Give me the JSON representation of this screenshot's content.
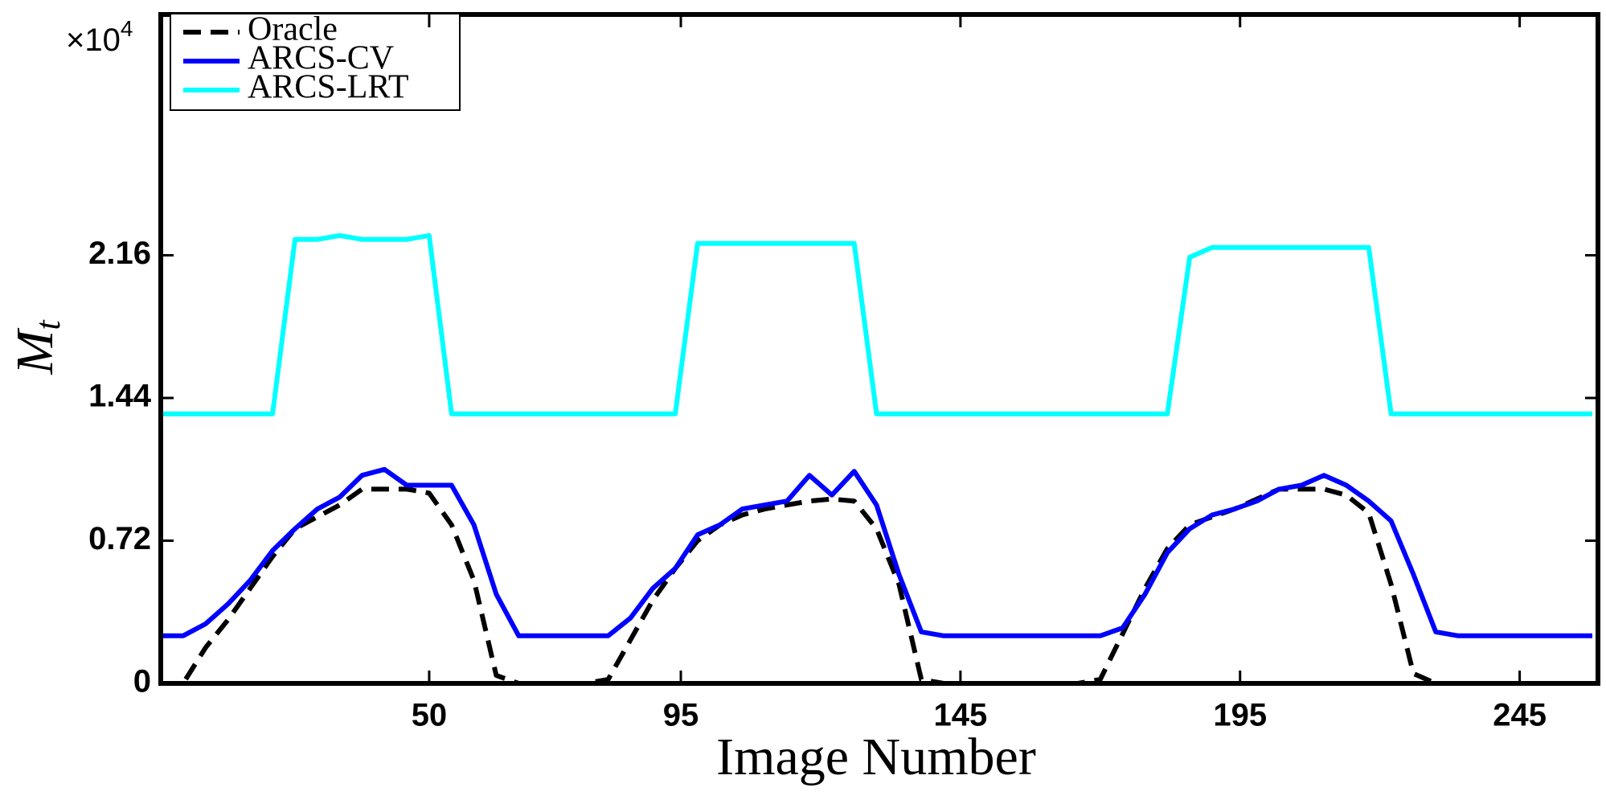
{
  "chart_data": {
    "type": "line",
    "xlabel": "Image Number",
    "ylabel": "M",
    "ylabel_subscript": "t",
    "y_offset_text": "×10",
    "y_offset_exponent": "4",
    "x": [
      2,
      6,
      10,
      14,
      18,
      22,
      26,
      30,
      34,
      38,
      42,
      46,
      50,
      54,
      58,
      62,
      66,
      70,
      74,
      78,
      82,
      86,
      90,
      94,
      98,
      102,
      106,
      110,
      114,
      118,
      122,
      126,
      130,
      134,
      138,
      142,
      146,
      150,
      154,
      158,
      162,
      166,
      170,
      174,
      178,
      182,
      186,
      190,
      194,
      198,
      202,
      206,
      210,
      214,
      218,
      222,
      226,
      230,
      234,
      238,
      242,
      246,
      250,
      254,
      258
    ],
    "series": [
      {
        "name": "Oracle",
        "color": "#000000",
        "dashed": true,
        "values": [
          0,
          0,
          0.18,
          0.32,
          0.48,
          0.64,
          0.78,
          0.84,
          0.9,
          0.98,
          0.98,
          0.98,
          0.96,
          0.8,
          0.52,
          0.04,
          0,
          0,
          0,
          0,
          0.02,
          0.22,
          0.42,
          0.58,
          0.72,
          0.8,
          0.85,
          0.88,
          0.9,
          0.92,
          0.93,
          0.92,
          0.78,
          0.5,
          0.02,
          0,
          0,
          0,
          0,
          0,
          0,
          0,
          0.02,
          0.25,
          0.48,
          0.68,
          0.8,
          0.84,
          0.88,
          0.93,
          0.98,
          0.98,
          0.98,
          0.95,
          0.86,
          0.5,
          0.05,
          0,
          0,
          0,
          0,
          0,
          0,
          0,
          0
        ]
      },
      {
        "name": "ARCS-CV",
        "color": "#0000ff",
        "dashed": false,
        "values": [
          0.24,
          0.24,
          0.3,
          0.4,
          0.52,
          0.67,
          0.78,
          0.88,
          0.94,
          1.05,
          1.08,
          1.0,
          1.0,
          1.0,
          0.8,
          0.45,
          0.24,
          0.24,
          0.24,
          0.24,
          0.24,
          0.33,
          0.48,
          0.58,
          0.75,
          0.8,
          0.88,
          0.9,
          0.92,
          1.05,
          0.95,
          1.07,
          0.9,
          0.55,
          0.26,
          0.24,
          0.24,
          0.24,
          0.24,
          0.24,
          0.24,
          0.24,
          0.24,
          0.28,
          0.45,
          0.66,
          0.78,
          0.85,
          0.88,
          0.92,
          0.98,
          1.0,
          1.05,
          1.0,
          0.92,
          0.82,
          0.55,
          0.26,
          0.24,
          0.24,
          0.24,
          0.24,
          0.24,
          0.24,
          0.24
        ]
      },
      {
        "name": "ARCS-LRT",
        "color": "#00ffff",
        "dashed": false,
        "values": [
          1.36,
          1.36,
          1.36,
          1.36,
          1.36,
          1.36,
          2.24,
          2.24,
          2.26,
          2.24,
          2.24,
          2.24,
          2.26,
          1.36,
          1.36,
          1.36,
          1.36,
          1.36,
          1.36,
          1.36,
          1.36,
          1.36,
          1.36,
          1.36,
          2.22,
          2.22,
          2.22,
          2.22,
          2.22,
          2.22,
          2.22,
          2.22,
          1.36,
          1.36,
          1.36,
          1.36,
          1.36,
          1.36,
          1.36,
          1.36,
          1.36,
          1.36,
          1.36,
          1.36,
          1.36,
          1.36,
          2.15,
          2.2,
          2.2,
          2.2,
          2.2,
          2.2,
          2.2,
          2.2,
          2.2,
          1.36,
          1.36,
          1.36,
          1.36,
          1.36,
          1.36,
          1.36,
          1.36,
          1.36,
          1.36
        ]
      }
    ],
    "xlim": [
      2,
      259
    ],
    "ylim": [
      0,
      3.375
    ],
    "xticks": [
      50,
      95,
      145,
      195,
      245
    ],
    "yticks": [
      0,
      0.72,
      1.44,
      2.16
    ],
    "grid": false,
    "legend": "upper left"
  }
}
